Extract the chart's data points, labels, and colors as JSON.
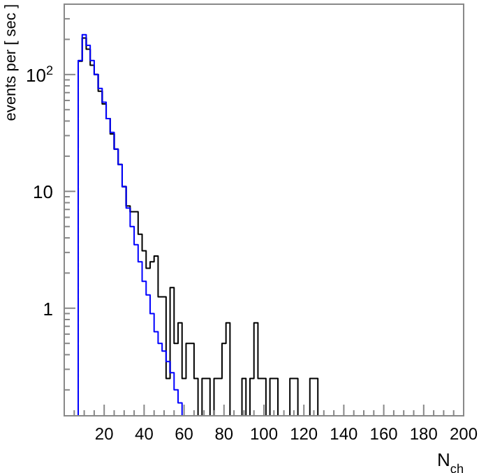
{
  "chart_data": {
    "type": "histogram",
    "xlabel": "N$_{ch}$",
    "ylabel": "events per [ sec ]",
    "log": "y",
    "grid": false,
    "bins": [
      7,
      9,
      11,
      13,
      15,
      17,
      19,
      21,
      23,
      25,
      27,
      29,
      31,
      33,
      35,
      37,
      39,
      41,
      43,
      45,
      47,
      49,
      51,
      53,
      55,
      57,
      59,
      61,
      63,
      65,
      67,
      69,
      71,
      73,
      75,
      77,
      79,
      81,
      83,
      85,
      87,
      89,
      91,
      93,
      95,
      97,
      99,
      101,
      103,
      105,
      107,
      109,
      111,
      113,
      115,
      117,
      119,
      121,
      123,
      125,
      127
    ],
    "series": [
      {
        "color": "#000000",
        "values": [
          130,
          205,
          165,
          120,
          100,
          72,
          56,
          42,
          31,
          23,
          17,
          11,
          7.5,
          6.7,
          6.7,
          4.3,
          3.1,
          2.2,
          2.5,
          2.8,
          1.25,
          1.25,
          0.25,
          1.5,
          0.5,
          0.75,
          0.25,
          0.5,
          0.5,
          0.25,
          null,
          0.25,
          0.25,
          null,
          0.25,
          0.25,
          0.5,
          0.75,
          null,
          null,
          null,
          0.25,
          null,
          0.25,
          0.75,
          0.25,
          0.25,
          null,
          0.25,
          0.25,
          null,
          null,
          null,
          0.25,
          0.25,
          null,
          null,
          null,
          0.25,
          0.25
        ]
      },
      {
        "color": "#0000ff",
        "values": [
          132,
          219,
          178,
          132,
          100,
          76,
          58,
          42,
          32,
          23,
          17,
          11,
          7.2,
          5.0,
          3.5,
          2.5,
          1.7,
          1.3,
          0.9,
          0.63,
          0.5,
          0.43,
          0.35,
          0.28,
          0.2,
          0.155,
          null,
          null,
          null,
          null,
          null,
          null,
          null,
          null,
          null,
          null,
          null,
          null,
          null,
          null,
          null,
          null,
          null,
          null,
          null,
          null,
          null,
          null,
          null,
          null,
          null,
          null,
          null,
          null,
          null,
          null,
          null,
          null,
          null,
          null
        ]
      }
    ],
    "xlim": [
      0,
      200
    ],
    "xticks": [
      {
        "value": 5,
        "label": null
      },
      {
        "value": 10,
        "label": null
      },
      {
        "value": 15,
        "label": null
      },
      20,
      {
        "value": 25,
        "label": null
      },
      {
        "value": 30,
        "label": null
      },
      {
        "value": 35,
        "label": null
      },
      40,
      {
        "value": 45,
        "label": null
      },
      {
        "value": 50,
        "label": null
      },
      {
        "value": 55,
        "label": null
      },
      60,
      {
        "value": 65,
        "label": null
      },
      {
        "value": 70,
        "label": null
      },
      {
        "value": 75,
        "label": null
      },
      80,
      {
        "value": 85,
        "label": null
      },
      {
        "value": 90,
        "label": null
      },
      {
        "value": 95,
        "label": null
      },
      100,
      {
        "value": 105,
        "label": null
      },
      {
        "value": 110,
        "label": null
      },
      {
        "value": 115,
        "label": null
      },
      120,
      {
        "value": 125,
        "label": null
      },
      {
        "value": 130,
        "label": null
      },
      {
        "value": 135,
        "label": null
      },
      140,
      {
        "value": 145,
        "label": null
      },
      {
        "value": 150,
        "label": null
      },
      {
        "value": 155,
        "label": null
      },
      160,
      {
        "value": 165,
        "label": null
      },
      {
        "value": 170,
        "label": null
      },
      {
        "value": 175,
        "label": null
      },
      180,
      {
        "value": 185,
        "label": null
      },
      {
        "value": 190,
        "label": null
      },
      {
        "value": 195,
        "label": null
      },
      200
    ],
    "ylim": [
      0.12,
      400
    ],
    "yticks": [
      {
        "value": 0.2,
        "label": null
      },
      {
        "value": 0.3,
        "label": null
      },
      {
        "value": 0.4,
        "label": null
      },
      {
        "value": 0.5,
        "label": null
      },
      {
        "value": 0.6,
        "label": null
      },
      {
        "value": 0.7,
        "label": null
      },
      {
        "value": 0.8,
        "label": null
      },
      {
        "value": 0.9,
        "label": null
      },
      1,
      {
        "value": 2,
        "label": null
      },
      {
        "value": 3,
        "label": null
      },
      {
        "value": 4,
        "label": null
      },
      {
        "value": 5,
        "label": null
      },
      {
        "value": 6,
        "label": null
      },
      {
        "value": 7,
        "label": null
      },
      {
        "value": 8,
        "label": null
      },
      {
        "value": 9,
        "label": null
      },
      10,
      {
        "value": 20,
        "label": null
      },
      {
        "value": 30,
        "label": null
      },
      {
        "value": 40,
        "label": null
      },
      {
        "value": 50,
        "label": null
      },
      {
        "value": 60,
        "label": null
      },
      {
        "value": 70,
        "label": null
      },
      {
        "value": 80,
        "label": null
      },
      {
        "value": 90,
        "label": null
      },
      {
        "value": 100,
        "label": "10$^{2}$"
      },
      {
        "value": 200,
        "label": null
      },
      {
        "value": 300,
        "label": null
      }
    ]
  }
}
